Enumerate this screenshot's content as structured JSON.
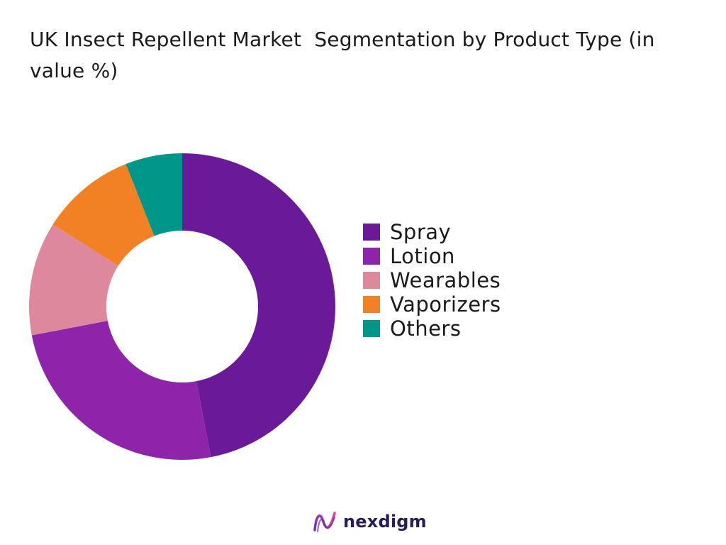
{
  "chart_data": {
    "type": "pie",
    "title": "UK Insect Repellent Market  Segmentation by Product Type (in value %)",
    "categories": [
      "Spray",
      "Lotion",
      "Wearables",
      "Vaporizers",
      "Others"
    ],
    "values": [
      47,
      25,
      12,
      10,
      6
    ],
    "colors": [
      "#6a1a99",
      "#8e24aa",
      "#de889e",
      "#f28025",
      "#00968a"
    ],
    "donut": true,
    "legend_position": "right"
  },
  "brand": {
    "name": "nexdigm",
    "logo_icon": "nexdigm-wave-icon"
  }
}
